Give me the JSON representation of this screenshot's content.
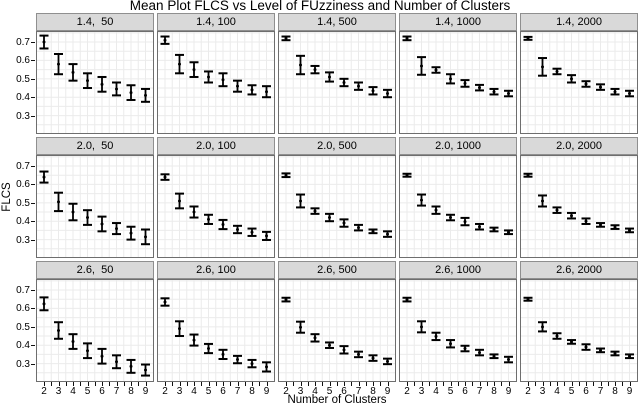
{
  "title": "Mean Plot FLCS vs Level of FUzziness and Number of Clusters",
  "xlabel": "Number of Clusters",
  "ylabel": "FLCS",
  "colors": {
    "strip_bg": "#d9d9d9",
    "strip_border": "#8f8f8f",
    "panel_border": "#6e6e6e",
    "grid": "#ebebeb",
    "bar": "#000000",
    "tick": "#111111"
  },
  "chart_data": {
    "type": "error-bar-trellis",
    "title": "Mean Plot FLCS vs Level of FUzziness and Number of Clusters",
    "xlabel": "Number of Clusters",
    "ylabel": "FLCS",
    "grid": true,
    "legend": "none",
    "x": [
      2,
      3,
      4,
      5,
      6,
      7,
      8,
      9
    ],
    "x_tick_labels": [
      "2",
      "3",
      "4",
      "5",
      "6",
      "7",
      "8",
      "9"
    ],
    "y_ticks": [
      0.3,
      0.4,
      0.5,
      0.6,
      0.7
    ],
    "y_tick_labels": [
      "0.3",
      "0.4",
      "0.5",
      "0.6",
      "0.7"
    ],
    "y_domain": [
      0.2,
      0.76
    ],
    "row_values_fuzziness": [
      "1.4",
      "2.0",
      "2.6"
    ],
    "col_values_clusters_param": [
      "50",
      "100",
      "500",
      "1000",
      "2000"
    ],
    "panels": [
      {
        "label": "1.4,  50",
        "fuzziness": 1.4,
        "param": 50,
        "means": [
          0.7,
          0.58,
          0.535,
          0.49,
          0.47,
          0.445,
          0.425,
          0.41
        ],
        "errors": [
          0.035,
          0.055,
          0.045,
          0.04,
          0.04,
          0.035,
          0.04,
          0.035
        ]
      },
      {
        "label": "1.4, 100",
        "fuzziness": 1.4,
        "param": 100,
        "means": [
          0.71,
          0.58,
          0.55,
          0.51,
          0.495,
          0.46,
          0.44,
          0.43
        ],
        "errors": [
          0.02,
          0.05,
          0.04,
          0.03,
          0.035,
          0.03,
          0.025,
          0.03
        ]
      },
      {
        "label": "1.4, 500",
        "fuzziness": 1.4,
        "param": 500,
        "means": [
          0.72,
          0.575,
          0.55,
          0.51,
          0.48,
          0.46,
          0.435,
          0.42
        ],
        "errors": [
          0.01,
          0.05,
          0.02,
          0.025,
          0.02,
          0.02,
          0.02,
          0.02
        ]
      },
      {
        "label": "1.4, 1000",
        "fuzziness": 1.4,
        "param": 1000,
        "means": [
          0.72,
          0.57,
          0.548,
          0.5,
          0.475,
          0.452,
          0.43,
          0.42
        ],
        "errors": [
          0.01,
          0.048,
          0.015,
          0.025,
          0.018,
          0.015,
          0.015,
          0.015
        ]
      },
      {
        "label": "1.4, 2000",
        "fuzziness": 1.4,
        "param": 2000,
        "means": [
          0.72,
          0.565,
          0.54,
          0.5,
          0.472,
          0.455,
          0.43,
          0.42
        ],
        "errors": [
          0.008,
          0.048,
          0.015,
          0.02,
          0.015,
          0.015,
          0.015,
          0.015
        ]
      },
      {
        "label": "2.0,  50",
        "fuzziness": 2.0,
        "param": 50,
        "means": [
          0.64,
          0.505,
          0.45,
          0.42,
          0.385,
          0.36,
          0.335,
          0.315
        ],
        "errors": [
          0.03,
          0.05,
          0.045,
          0.04,
          0.04,
          0.03,
          0.035,
          0.04
        ]
      },
      {
        "label": "2.0, 100",
        "fuzziness": 2.0,
        "param": 100,
        "means": [
          0.64,
          0.51,
          0.45,
          0.41,
          0.382,
          0.355,
          0.34,
          0.32
        ],
        "errors": [
          0.015,
          0.04,
          0.03,
          0.025,
          0.025,
          0.02,
          0.02,
          0.022
        ]
      },
      {
        "label": "2.0, 500",
        "fuzziness": 2.0,
        "param": 500,
        "means": [
          0.65,
          0.51,
          0.455,
          0.42,
          0.39,
          0.365,
          0.345,
          0.33
        ],
        "errors": [
          0.01,
          0.035,
          0.015,
          0.02,
          0.02,
          0.015,
          0.01,
          0.015
        ]
      },
      {
        "label": "2.0, 1000",
        "fuzziness": 2.0,
        "param": 1000,
        "means": [
          0.65,
          0.515,
          0.46,
          0.42,
          0.398,
          0.37,
          0.355,
          0.34
        ],
        "errors": [
          0.008,
          0.03,
          0.02,
          0.015,
          0.02,
          0.015,
          0.01,
          0.01
        ]
      },
      {
        "label": "2.0, 2000",
        "fuzziness": 2.0,
        "param": 2000,
        "means": [
          0.65,
          0.51,
          0.46,
          0.43,
          0.4,
          0.38,
          0.368,
          0.35
        ],
        "errors": [
          0.008,
          0.03,
          0.015,
          0.015,
          0.015,
          0.01,
          0.01,
          0.01
        ]
      },
      {
        "label": "2.6,  50",
        "fuzziness": 2.6,
        "param": 50,
        "means": [
          0.625,
          0.48,
          0.42,
          0.37,
          0.34,
          0.31,
          0.285,
          0.265
        ],
        "errors": [
          0.035,
          0.045,
          0.04,
          0.04,
          0.04,
          0.035,
          0.035,
          0.03
        ]
      },
      {
        "label": "2.6, 100",
        "fuzziness": 2.6,
        "param": 100,
        "means": [
          0.635,
          0.49,
          0.428,
          0.382,
          0.35,
          0.322,
          0.3,
          0.282
        ],
        "errors": [
          0.02,
          0.04,
          0.03,
          0.025,
          0.025,
          0.02,
          0.02,
          0.025
        ]
      },
      {
        "label": "2.6, 500",
        "fuzziness": 2.6,
        "param": 500,
        "means": [
          0.648,
          0.498,
          0.44,
          0.4,
          0.375,
          0.35,
          0.33,
          0.312
        ],
        "errors": [
          0.01,
          0.03,
          0.02,
          0.015,
          0.02,
          0.015,
          0.015,
          0.015
        ]
      },
      {
        "label": "2.6, 1000",
        "fuzziness": 2.6,
        "param": 1000,
        "means": [
          0.648,
          0.5,
          0.448,
          0.408,
          0.382,
          0.36,
          0.34,
          0.322
        ],
        "errors": [
          0.01,
          0.03,
          0.02,
          0.02,
          0.015,
          0.015,
          0.01,
          0.015
        ]
      },
      {
        "label": "2.6, 2000",
        "fuzziness": 2.6,
        "param": 2000,
        "means": [
          0.65,
          0.5,
          0.45,
          0.418,
          0.39,
          0.372,
          0.355,
          0.34
        ],
        "errors": [
          0.008,
          0.025,
          0.015,
          0.01,
          0.015,
          0.01,
          0.01,
          0.01
        ]
      }
    ]
  }
}
